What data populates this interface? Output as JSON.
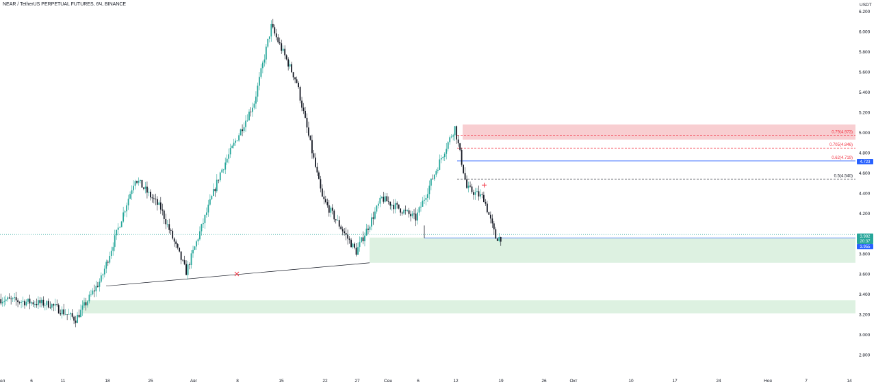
{
  "chart_data": {
    "type": "candlestick",
    "title": "NEAR / TetherUS PERPETUAL FUTURES, 6Ч, BINANCE",
    "y_axis": {
      "unit_label": "USDT",
      "position": "right",
      "range": [
        2.7,
        6.25
      ],
      "ticks": [
        "6.200",
        "6.000",
        "5.800",
        "5.600",
        "5.400",
        "5.200",
        "5.000",
        "4.800",
        "4.600",
        "4.400",
        "4.200",
        "3.800",
        "3.600",
        "3.400",
        "3.200",
        "3.000",
        "2.800"
      ]
    },
    "x_axis": {
      "ticks": [
        "юл",
        "6",
        "11",
        "18",
        "25",
        "Авг",
        "8",
        "15",
        "22",
        "27",
        "Сен",
        "6",
        "12",
        "19",
        "26",
        "Окт",
        "10",
        "17",
        "24",
        "Ноя",
        "7",
        "14"
      ]
    },
    "price_badges": [
      {
        "text": "3.992",
        "color": "#26a69a"
      },
      {
        "text": "20:37",
        "color": "#26a69a"
      },
      {
        "text": "3.955",
        "color": "#2962ff"
      },
      {
        "text": "4.723",
        "color": "#2962ff"
      }
    ],
    "fib_levels": [
      {
        "label": "0.79(4.973)",
        "price": 4.973,
        "color": "#f23645"
      },
      {
        "label": "0.705(4.846)",
        "price": 4.846,
        "color": "#f23645"
      },
      {
        "label": "0.62(4.719)",
        "price": 4.719,
        "color": "#f23645"
      },
      {
        "label": "0.5(4.540)",
        "price": 4.54,
        "color": "#131722"
      }
    ],
    "zones": [
      {
        "kind": "supply",
        "top": 5.08,
        "bottom": 4.93,
        "color": "#f7c5c9"
      },
      {
        "kind": "demand",
        "top": 3.96,
        "bottom": 3.71,
        "color": "#d7efdc"
      },
      {
        "kind": "demand",
        "top": 3.34,
        "bottom": 3.21,
        "color": "#d7efdc"
      }
    ],
    "candle_colors": {
      "up": "#26a69a",
      "down": "#131722"
    },
    "key_points": [
      {
        "x_index": 0,
        "price": 3.35
      },
      {
        "x_index": 30,
        "price": 3.3
      },
      {
        "x_index": 45,
        "price": 3.15
      },
      {
        "x_index": 60,
        "price": 3.55
      },
      {
        "x_index": 80,
        "price": 4.55
      },
      {
        "x_index": 95,
        "price": 4.25
      },
      {
        "x_index": 110,
        "price": 3.62
      },
      {
        "x_index": 130,
        "price": 4.6
      },
      {
        "x_index": 150,
        "price": 5.3
      },
      {
        "x_index": 160,
        "price": 6.05
      },
      {
        "x_index": 175,
        "price": 5.5
      },
      {
        "x_index": 190,
        "price": 4.35
      },
      {
        "x_index": 210,
        "price": 3.82
      },
      {
        "x_index": 225,
        "price": 4.35
      },
      {
        "x_index": 245,
        "price": 4.15
      },
      {
        "x_index": 260,
        "price": 4.75
      },
      {
        "x_index": 268,
        "price": 5.05
      },
      {
        "x_index": 275,
        "price": 4.45
      },
      {
        "x_index": 285,
        "price": 4.35
      },
      {
        "x_index": 292,
        "price": 3.96
      }
    ],
    "legend": "none",
    "grid": false
  }
}
